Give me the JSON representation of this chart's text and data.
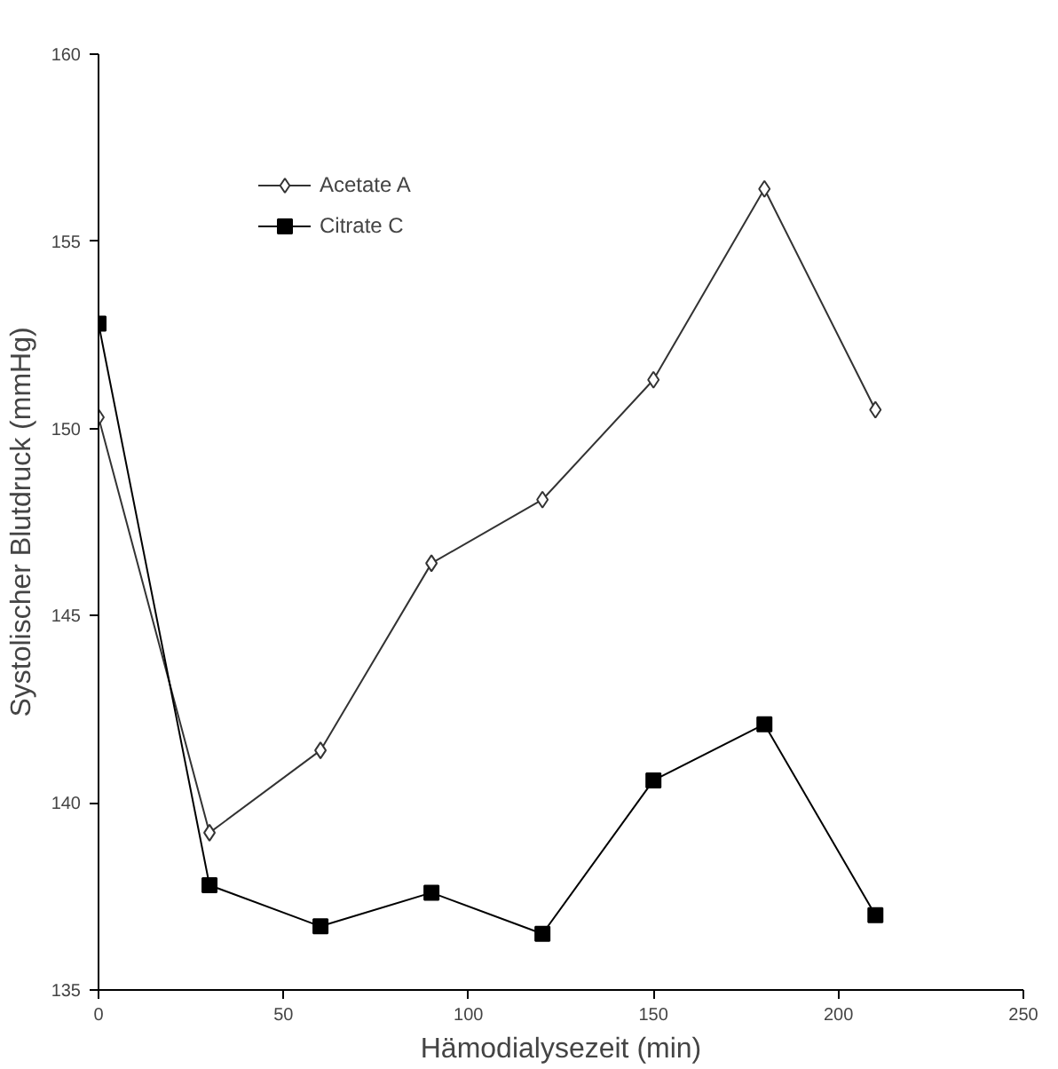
{
  "chart_data": {
    "type": "line",
    "xlabel": "Hämodialysezeit (min)",
    "ylabel": "Systolischer Blutdruck (mmHg)",
    "x": [
      0,
      30,
      60,
      90,
      120,
      150,
      180,
      210
    ],
    "series": [
      {
        "name": "Acetate A",
        "color": "#333333",
        "marker": "diamond",
        "values": [
          150.3,
          139.2,
          141.4,
          146.4,
          148.1,
          151.3,
          156.4,
          150.5
        ]
      },
      {
        "name": "Citrate C",
        "color": "#000000",
        "marker": "square",
        "values": [
          152.8,
          137.8,
          136.7,
          137.6,
          136.5,
          140.6,
          142.1,
          137.0
        ]
      }
    ],
    "xlim": [
      0,
      250
    ],
    "xticks": [
      0,
      50,
      100,
      150,
      200,
      250
    ],
    "ylim": [
      135,
      160
    ],
    "yticks": [
      135,
      140,
      145,
      150,
      155,
      160
    ],
    "grid": false,
    "legend": "top left",
    "line_style": "solid"
  }
}
